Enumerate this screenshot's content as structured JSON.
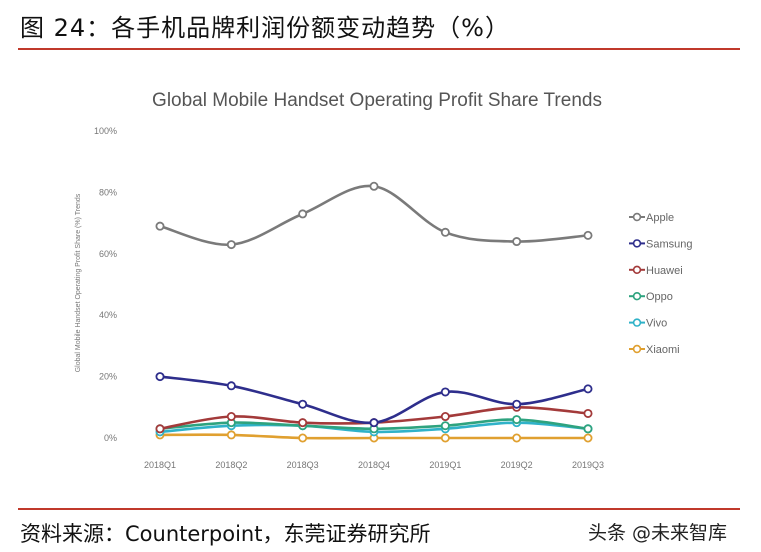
{
  "figure": {
    "title": "图 24：各手机品牌利润份额变动趋势（%）",
    "source": "资料来源：Counterpoint，东莞证券研究所",
    "watermark": "头条 @未来智库"
  },
  "chart_data": {
    "type": "line",
    "title": "Global Mobile Handset Operating Profit Share Trends",
    "ylabel": "Global Mobile Handset Operating Profit Share (%) Trends",
    "xlabel": "",
    "categories": [
      "2018Q1",
      "2018Q2",
      "2018Q3",
      "2018Q4",
      "2019Q1",
      "2019Q2",
      "2019Q3"
    ],
    "yticks": [
      "0%",
      "20%",
      "40%",
      "60%",
      "80%",
      "100%"
    ],
    "ylim": [
      0,
      100
    ],
    "grid": false,
    "legend_position": "right",
    "series": [
      {
        "name": "Apple",
        "color": "#7a7a7a",
        "values": [
          69,
          63,
          73,
          82,
          67,
          64,
          66
        ]
      },
      {
        "name": "Samsung",
        "color": "#2e2e8c",
        "values": [
          20,
          17,
          11,
          5,
          15,
          11,
          16
        ]
      },
      {
        "name": "Huawei",
        "color": "#a33a3a",
        "values": [
          3,
          7,
          5,
          5,
          7,
          10,
          8
        ]
      },
      {
        "name": "Oppo",
        "color": "#2ea37f",
        "values": [
          3,
          5,
          4,
          3,
          4,
          6,
          3
        ]
      },
      {
        "name": "Vivo",
        "color": "#2fb2c8",
        "values": [
          2,
          4,
          4,
          2,
          3,
          5,
          3
        ]
      },
      {
        "name": "Xiaomi",
        "color": "#e0a030",
        "values": [
          1,
          1,
          0,
          0,
          0,
          0,
          0
        ]
      }
    ]
  }
}
